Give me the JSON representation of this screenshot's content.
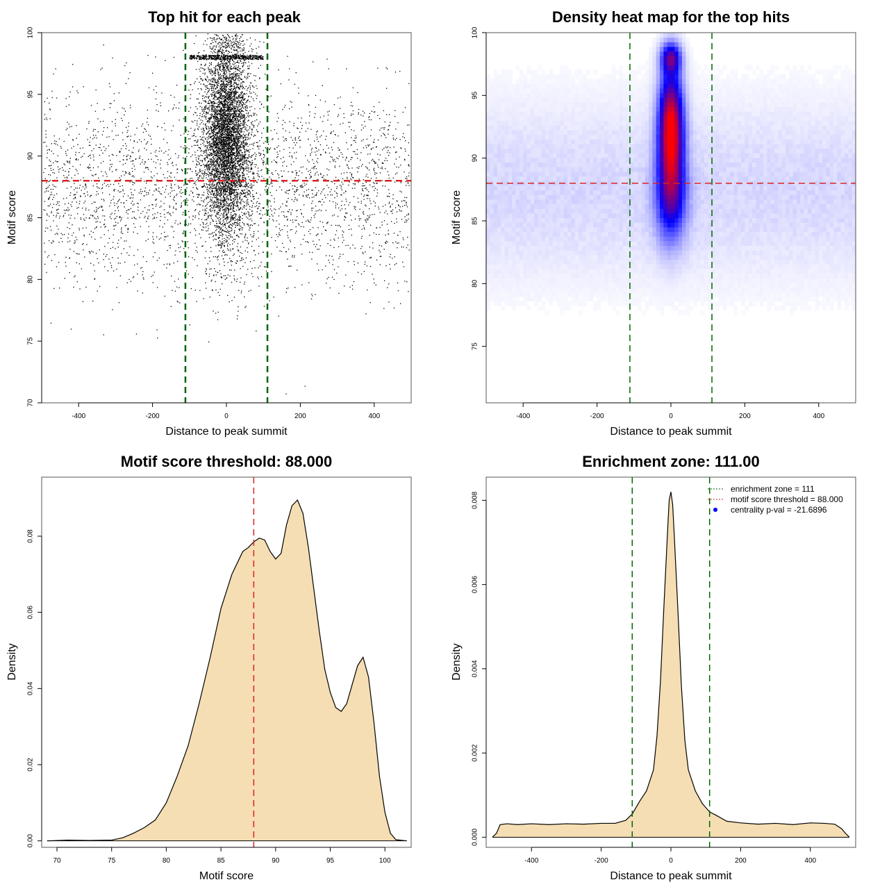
{
  "colors": {
    "box": "#555555",
    "points": "#000000",
    "threshold_line": "#dd2222",
    "zone_line": "#006400",
    "density_fill": "#f5deb3",
    "density_line": "#000000",
    "heat_low": "#ffffff",
    "heat_mid": "#0000ff",
    "heat_high": "#ff0000",
    "legend_point": "#0000ff"
  },
  "chart_data": [
    {
      "id": "scatter",
      "type": "scatter",
      "title": "Top hit for each peak",
      "xlabel": "Distance to peak summit",
      "ylabel": "Motif score",
      "xlim": [
        -500,
        500
      ],
      "ylim": [
        70,
        100
      ],
      "xticks": [
        "-400",
        "-200",
        "0",
        "200",
        "400"
      ],
      "yticks": [
        "70",
        "75",
        "80",
        "85",
        "90",
        "95",
        "100"
      ],
      "tick_values_x": [
        -400,
        -200,
        0,
        200,
        400
      ],
      "tick_values_y": [
        70,
        75,
        80,
        85,
        90,
        95,
        100
      ],
      "hlines": [
        88
      ],
      "vlines": [
        -111,
        111
      ],
      "grid": false,
      "point_model": {
        "background_count": 3000,
        "background_x_range": [
          -495,
          495
        ],
        "background_score_mean": 87.5,
        "background_score_sd": 4.0,
        "central_count": 5500,
        "central_x_sd": 32,
        "central_score_mean": 91.5,
        "central_score_sd": 4.0,
        "band_score": 98,
        "band_count": 500,
        "band_x_range": [
          -100,
          100
        ]
      }
    },
    {
      "id": "heatmap",
      "type": "heatmap",
      "title": "Density heat map for the top hits",
      "xlabel": "Distance to peak summit",
      "ylabel": "Motif score",
      "xlim": [
        -500,
        500
      ],
      "ylim": [
        70.5,
        100
      ],
      "xticks": [
        "-400",
        "-200",
        "0",
        "200",
        "400"
      ],
      "yticks": [
        "75",
        "80",
        "85",
        "90",
        "95",
        "100"
      ],
      "tick_values_x": [
        -400,
        -200,
        0,
        200,
        400
      ],
      "tick_values_y": [
        75,
        80,
        85,
        90,
        95,
        100
      ],
      "hlines": [
        88
      ],
      "vlines": [
        -111,
        111
      ],
      "hotspots": [
        {
          "x": 0,
          "y": 92.5,
          "sx": 22,
          "sy": 3.0,
          "w": 1.0
        },
        {
          "x": 0,
          "y": 98,
          "sx": 18,
          "sy": 0.8,
          "w": 0.55
        },
        {
          "x": 0,
          "y": 87,
          "sx": 28,
          "sy": 2.5,
          "w": 0.5
        }
      ],
      "background_level": 0.07
    },
    {
      "id": "score-density",
      "type": "area",
      "title": "Motif score threshold: 88.000",
      "xlabel": "Motif score",
      "ylabel": "Density",
      "xlim": [
        68.6,
        102.4
      ],
      "ylim": [
        -0.0017,
        0.0955
      ],
      "xticks": [
        "70",
        "75",
        "80",
        "85",
        "90",
        "95",
        "100"
      ],
      "yticks": [
        "0.00",
        "0.02",
        "0.04",
        "0.06",
        "0.08"
      ],
      "tick_values_x": [
        70,
        75,
        80,
        85,
        90,
        95,
        100
      ],
      "tick_values_y": [
        0,
        0.02,
        0.04,
        0.06,
        0.08
      ],
      "vlines": [
        88
      ],
      "x": [
        69.1,
        71,
        73,
        75,
        76,
        77,
        78,
        79,
        80,
        81,
        82,
        83,
        84,
        85,
        86,
        87,
        87.5,
        88,
        88.5,
        89,
        89.5,
        90,
        90.5,
        91,
        91.5,
        92,
        92.5,
        93,
        93.5,
        94,
        94.5,
        95,
        95.5,
        96,
        96.5,
        97,
        97.5,
        98,
        98.5,
        99,
        99.5,
        100,
        100.5,
        101,
        102
      ],
      "y": [
        0.0,
        0.0002,
        0.0001,
        0.0002,
        0.0008,
        0.002,
        0.0035,
        0.0055,
        0.01,
        0.017,
        0.025,
        0.036,
        0.048,
        0.061,
        0.07,
        0.076,
        0.077,
        0.0785,
        0.0795,
        0.079,
        0.076,
        0.074,
        0.0755,
        0.083,
        0.088,
        0.0895,
        0.086,
        0.077,
        0.066,
        0.055,
        0.045,
        0.039,
        0.035,
        0.034,
        0.036,
        0.041,
        0.046,
        0.0482,
        0.043,
        0.031,
        0.017,
        0.0075,
        0.002,
        0.0003,
        0.0
      ]
    },
    {
      "id": "distance-density",
      "type": "area",
      "title": "Enrichment zone: 111.00",
      "xlabel": "Distance to peak summit",
      "ylabel": "Density",
      "xlim": [
        -530,
        530
      ],
      "ylim": [
        -0.00024,
        0.00855
      ],
      "xticks": [
        "-400",
        "-200",
        "0",
        "200",
        "400"
      ],
      "yticks": [
        "0.000",
        "0.002",
        "0.004",
        "0.006",
        "0.008"
      ],
      "tick_values_x": [
        -400,
        -200,
        0,
        200,
        400
      ],
      "tick_values_y": [
        0,
        0.002,
        0.004,
        0.006,
        0.008
      ],
      "vlines": [
        -111,
        111
      ],
      "x": [
        -512,
        -500,
        -490,
        -470,
        -440,
        -400,
        -350,
        -300,
        -250,
        -200,
        -160,
        -130,
        -111,
        -90,
        -70,
        -50,
        -40,
        -30,
        -20,
        -10,
        -5,
        0,
        5,
        10,
        20,
        30,
        40,
        50,
        70,
        90,
        111,
        130,
        160,
        200,
        250,
        300,
        350,
        400,
        440,
        470,
        490,
        500,
        512
      ],
      "y": [
        0.0,
        0.0001,
        0.0003,
        0.00032,
        0.0003,
        0.00032,
        0.0003,
        0.00032,
        0.00031,
        0.00033,
        0.00033,
        0.0004,
        0.00055,
        0.00085,
        0.0011,
        0.0016,
        0.0024,
        0.0037,
        0.0055,
        0.0072,
        0.008,
        0.0082,
        0.0079,
        0.0071,
        0.0054,
        0.0036,
        0.0023,
        0.0016,
        0.0011,
        0.0008,
        0.0006,
        0.00052,
        0.00038,
        0.00034,
        0.00031,
        0.00033,
        0.0003,
        0.00034,
        0.00033,
        0.00031,
        0.0002,
        0.0001,
        0.0
      ]
    }
  ],
  "legend": {
    "items": [
      {
        "label": "enrichment zone = 111",
        "symbol": "dotted-line",
        "color": "#006400"
      },
      {
        "label": "motif score threshold = 88.000",
        "symbol": "dotted-line",
        "color": "#dd2222"
      },
      {
        "label": "centrality p-val = -21.6896",
        "symbol": "point",
        "color": "#0000ff"
      }
    ]
  }
}
